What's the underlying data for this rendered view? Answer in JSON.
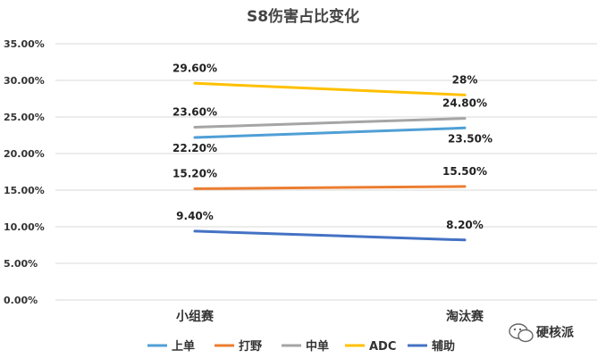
{
  "chart_data": {
    "type": "line",
    "title": "S8伤害占比变化",
    "categories": [
      "小组赛",
      "淘汰赛"
    ],
    "y_ticks": [
      "0.00%",
      "5.00%",
      "10.00%",
      "15.00%",
      "20.00%",
      "25.00%",
      "30.00%",
      "35.00%"
    ],
    "ylim": [
      0,
      35
    ],
    "grid": true,
    "legend_position": "bottom",
    "series": [
      {
        "name": "上单",
        "values": [
          22.2,
          23.5
        ],
        "labels": [
          "22.20%",
          "23.50%"
        ],
        "color": "#4f9fd6"
      },
      {
        "name": "打野",
        "values": [
          15.2,
          15.5
        ],
        "labels": [
          "15.20%",
          "15.50%"
        ],
        "color": "#ec7d31"
      },
      {
        "name": "中单",
        "values": [
          23.6,
          24.8
        ],
        "labels": [
          "23.60%",
          "24.80%"
        ],
        "color": "#a5a5a5"
      },
      {
        "name": "ADC",
        "values": [
          29.6,
          28.0
        ],
        "labels": [
          "29.60%",
          "28%"
        ],
        "color": "#ffc000"
      },
      {
        "name": "辅助",
        "values": [
          9.4,
          8.2
        ],
        "labels": [
          "9.40%",
          "8.20%"
        ],
        "color": "#4472c4"
      }
    ]
  },
  "watermark": {
    "text": "硬核派",
    "icon": "wechat-icon"
  }
}
